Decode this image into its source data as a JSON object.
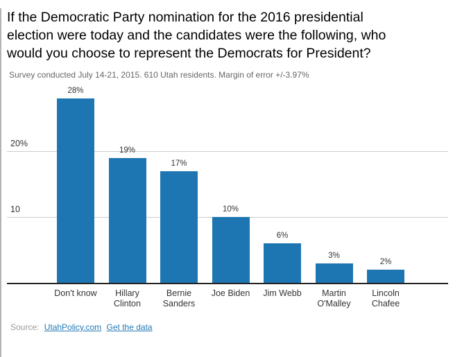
{
  "chart_data": {
    "type": "bar",
    "title": "If the Democratic Party nomination for the 2016 presidential\nelection were today and the candidates were the following, who\nwould you choose to represent the Democrats for President?",
    "subtitle": "Survey conducted July 14-21, 2015. 610 Utah residents. Margin of error +/-3.97%",
    "categories": [
      "Don't know",
      "Hillary\nClinton",
      "Bernie\nSanders",
      "Joe Biden",
      "Jim Webb",
      "Martin\nO'Malley",
      "Lincoln\nChafee"
    ],
    "values": [
      28,
      19,
      17,
      10,
      6,
      3,
      2
    ],
    "value_labels": [
      "28%",
      "19%",
      "17%",
      "10%",
      "6%",
      "3%",
      "2%"
    ],
    "xlabel": "",
    "ylabel": "",
    "ylim": [
      0,
      30
    ],
    "yticks": [
      {
        "value": 20,
        "label": "20%"
      },
      {
        "value": 10,
        "label": "10"
      }
    ],
    "grid": true,
    "legend": "none",
    "bar_color": "#1d76b2"
  },
  "footer": {
    "source_label": "Source:",
    "links": [
      {
        "label": "UtahPolicy.com"
      },
      {
        "label": "Get the data"
      }
    ],
    "link_color": "#2579b5"
  }
}
